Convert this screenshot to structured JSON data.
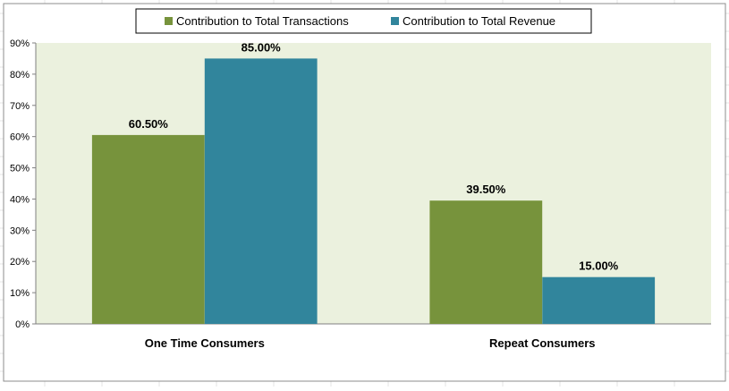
{
  "chart_data": {
    "type": "bar",
    "categories": [
      "One Time Consumers",
      "Repeat Consumers"
    ],
    "series": [
      {
        "name": "Contribution to Total Transactions",
        "values": [
          60.5,
          39.5
        ],
        "labels": [
          "60.50%",
          "39.50%"
        ],
        "color": "#77933c"
      },
      {
        "name": "Contribution to Total Revenue",
        "values": [
          85.0,
          15.0
        ],
        "labels": [
          "85.00%",
          "15.00%"
        ],
        "color": "#31859c"
      }
    ],
    "ylim": [
      0,
      90
    ],
    "yticks": [
      "0%",
      "10%",
      "20%",
      "30%",
      "40%",
      "50%",
      "60%",
      "70%",
      "80%",
      "90%"
    ],
    "title": "",
    "xlabel": "",
    "ylabel": "",
    "grid": false,
    "legend_position": "top"
  },
  "colors": {
    "plot_background": "#ebf1de",
    "frame": "#808080"
  }
}
